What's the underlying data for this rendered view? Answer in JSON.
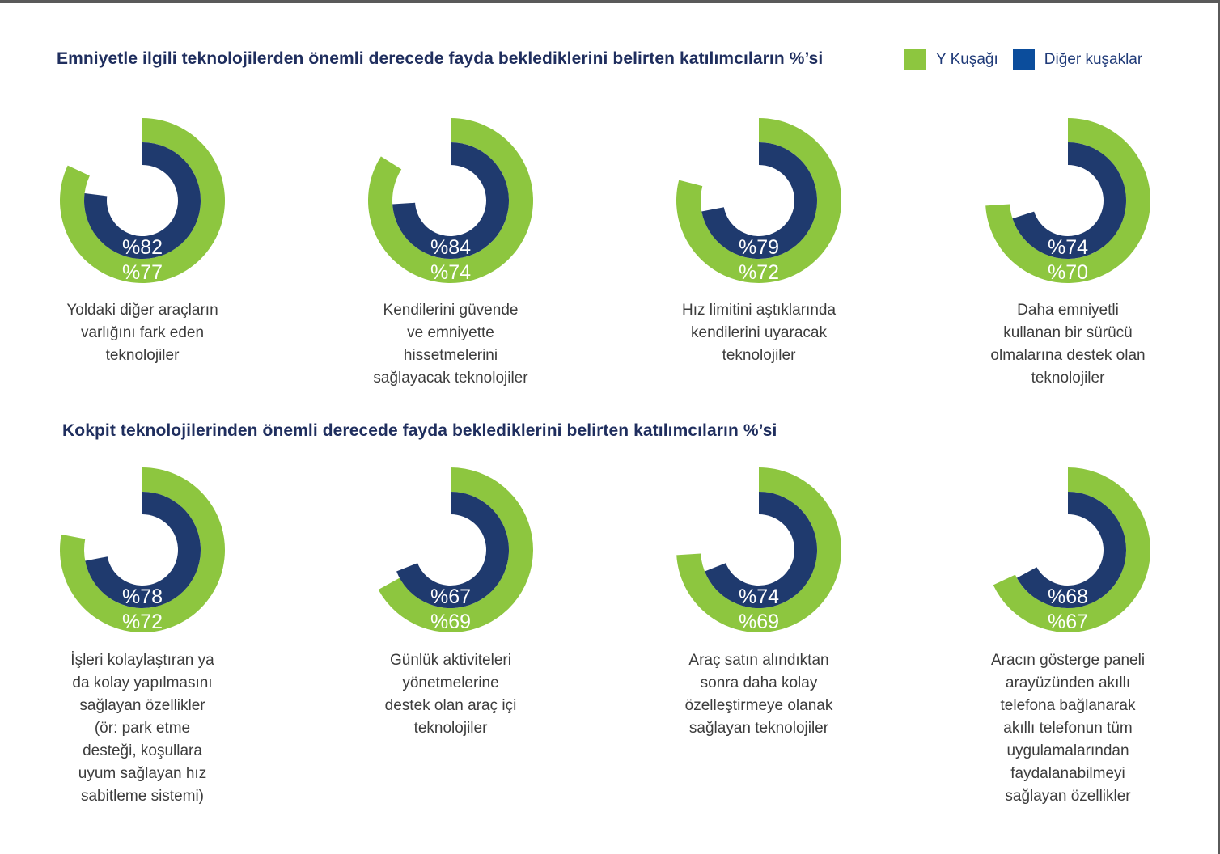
{
  "legend": {
    "y_label": "Y Kuşağı",
    "other_label": "Diğer kuşaklar"
  },
  "colors": {
    "y_generation": "#8dc63f",
    "other_generations": "#1f3a6e",
    "legend_other": "#0b4d9c",
    "value_text": "#ffffff",
    "title_text": "#1f2e5e"
  },
  "chart_data": [
    {
      "type": "radial-bar",
      "title": "Emniyetle ilgili teknolojilerden önemli derecede fayda beklediklerini belirten katılımcıların %’si",
      "series_names": [
        "Y Kuşağı",
        "Diğer kuşaklar"
      ],
      "items": [
        {
          "category": "Yoldaki diğer araçların\nvarlığını fark eden\nteknolojiler",
          "y": 82,
          "other": 77,
          "y_label": "%82",
          "other_label": "%77"
        },
        {
          "category": "Kendilerini güvende\nve emniyette\nhissetmelerini\nsağlayacak teknolojiler",
          "y": 84,
          "other": 74,
          "y_label": "%84",
          "other_label": "%74"
        },
        {
          "category": "Hız limitini aştıklarında\nkendilerini uyaracak\nteknolojiler",
          "y": 79,
          "other": 72,
          "y_label": "%79",
          "other_label": "%72"
        },
        {
          "category": "Daha emniyetli\nkullanan bir sürücü\nolmalarına destek olan\nteknolojiler",
          "y": 74,
          "other": 70,
          "y_label": "%74",
          "other_label": "%70"
        }
      ]
    },
    {
      "type": "radial-bar",
      "title": "Kokpit teknolojilerinden önemli derecede fayda beklediklerini belirten katılımcıların %’si",
      "series_names": [
        "Y Kuşağı",
        "Diğer kuşaklar"
      ],
      "items": [
        {
          "category": "İşleri kolaylaştıran ya\nda kolay yapılmasını\nsağlayan özellikler\n(ör: park etme\ndesteği, koşullara\nuyum sağlayan hız\nsabitleme sistemi)",
          "y": 78,
          "other": 72,
          "y_label": "%78",
          "other_label": "%72"
        },
        {
          "category": "Günlük aktiviteleri\nyönetmelerine\ndestek olan araç içi\nteknolojiler",
          "y": 67,
          "other": 69,
          "y_label": "%67",
          "other_label": "%69"
        },
        {
          "category": "Araç satın alındıktan\nsonra daha kolay\nözelleştirmeye olanak\nsağlayan teknolojiler",
          "y": 74,
          "other": 69,
          "y_label": "%74",
          "other_label": "%69"
        },
        {
          "category": "Aracın gösterge paneli\narayüzünden akıllı\ntelefona bağlanarak\nakıllı telefonun tüm\nuygulamalarından\nfaydalanabilmeyi\nsağlayan özellikler",
          "y": 68,
          "other": 67,
          "y_label": "%68",
          "other_label": "%67"
        }
      ]
    }
  ]
}
